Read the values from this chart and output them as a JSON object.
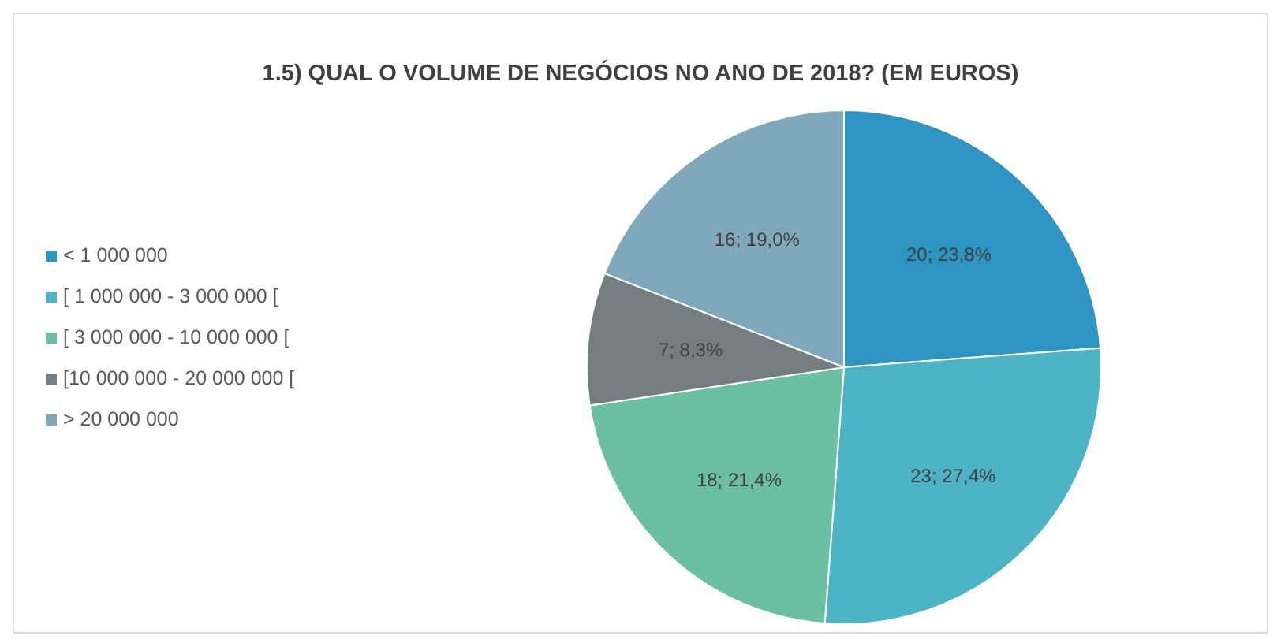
{
  "chart_data": {
    "type": "pie",
    "title": "1.5) QUAL  O VOLUME DE NEGÓCIOS NO ANO DE 2018? (EM EUROS)",
    "categories": [
      "< 1 000 000",
      "[ 1 000 000 - 3 000 000 [",
      "[ 3 000 000 - 10 000 000 [",
      "[10 000 000 - 20 000 000 [",
      "> 20 000 000"
    ],
    "values": [
      20,
      23,
      18,
      7,
      16
    ],
    "value_labels": [
      "20; 23,8%",
      "23; 27,4%",
      "18; 21,4%",
      "7; 8,3%",
      "16; 19,0%"
    ],
    "colors": [
      "#2e95c2",
      "#4db4c6",
      "#6cc0a2",
      "#747e80",
      "#7fa9ba"
    ],
    "legend": "left"
  }
}
